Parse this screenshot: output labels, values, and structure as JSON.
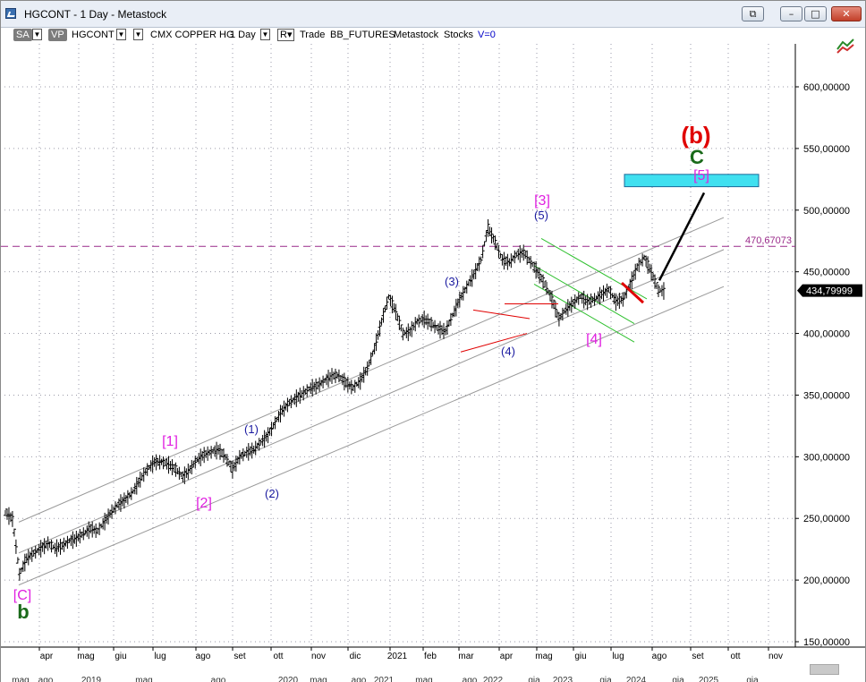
{
  "window": {
    "title": "HGCONT - 1 Day - Metastock",
    "controls": {
      "restore_doc": "⧉",
      "minimize": "–",
      "maximize": "□",
      "close": "✕"
    },
    "close_color": "#c2402a"
  },
  "toolbar": {
    "sa_label": "SA",
    "vp_label": "VP",
    "symbol": "HGCONT",
    "instrument": "CMX COPPER HG",
    "period": "1 Day",
    "mode_label": "R",
    "trade_label": "Trade",
    "exchange": "BB_FUTURES",
    "source": "Metastock",
    "category": "Stocks",
    "volume_flag": "V=0",
    "dropdown_icon": "chevron-down-icon"
  },
  "chart_data": {
    "type": "line",
    "style": "ohlc-bars",
    "symbol": "HGCONT",
    "x_axis_months": [
      "apr",
      "mag",
      "giu",
      "lug",
      "ago",
      "set",
      "ott",
      "nov",
      "dic",
      "2021",
      "feb",
      "mar",
      "apr",
      "mag",
      "giu",
      "lug",
      "ago",
      "set",
      "ott",
      "nov"
    ],
    "x_axis_lower_fragments": [
      "mag",
      "ago",
      "2019",
      "mag",
      "ago",
      "2020",
      "mag",
      "ago",
      "2021",
      "mag",
      "ago",
      "2022",
      "gia",
      "2023",
      "gia",
      "2024",
      "gia",
      "2025",
      "gia"
    ],
    "y_ticks": [
      "600,00000",
      "550,00000",
      "500,00000",
      "450,00000",
      "400,00000",
      "350,00000",
      "300,00000",
      "250,00000",
      "200,00000",
      "150,00000"
    ],
    "ylim": [
      150,
      650
    ],
    "last_price_label": "434,79999",
    "last_price": 434.8,
    "reference_line": {
      "label": "470,67073",
      "value": 470.67,
      "color": "#9a2a8a",
      "style": "dashed"
    },
    "grid": true,
    "series": [
      {
        "name": "HGCONT",
        "x": [
          0,
          4,
          8,
          12,
          16,
          20,
          24,
          28,
          32,
          36,
          40,
          44,
          48,
          52,
          56,
          60,
          64,
          68,
          72,
          76,
          80,
          84,
          88,
          92,
          96,
          100,
          104,
          108,
          112,
          116,
          120,
          124,
          128,
          132,
          136,
          140,
          144,
          148,
          152,
          156,
          160,
          164,
          168,
          172,
          176,
          180,
          184,
          188,
          192,
          196,
          200,
          204,
          208,
          212,
          216,
          220,
          224,
          228,
          232,
          236,
          240,
          244,
          248,
          252,
          256,
          260,
          264,
          268,
          272,
          276,
          280,
          284,
          288,
          292,
          296,
          300,
          304,
          308,
          312,
          316,
          320,
          324,
          328,
          332,
          336,
          340,
          344,
          348,
          352,
          356,
          360,
          364,
          368
        ],
        "values": [
          255,
          250,
          205,
          218,
          222,
          226,
          230,
          226,
          228,
          232,
          234,
          238,
          242,
          240,
          248,
          256,
          262,
          266,
          272,
          282,
          290,
          296,
          296,
          294,
          290,
          284,
          290,
          298,
          302,
          304,
          306,
          300,
          290,
          300,
          304,
          306,
          312,
          318,
          328,
          338,
          344,
          348,
          352,
          356,
          358,
          362,
          366,
          366,
          360,
          356,
          362,
          372,
          388,
          410,
          430,
          418,
          400,
          402,
          410,
          412,
          408,
          404,
          402,
          415,
          428,
          438,
          448,
          460,
          486,
          474,
          460,
          458,
          464,
          466,
          458,
          450,
          440,
          428,
          412,
          420,
          425,
          430,
          426,
          428,
          432,
          436,
          426,
          428,
          440,
          454,
          462,
          450,
          435
        ]
      }
    ]
  },
  "annotations": {
    "wave_b_red": "(b)",
    "wave_c_green": "C",
    "wave_5_magenta": "[5]",
    "wave_3_magenta": "[3]",
    "wave_5_blue": "(5)",
    "wave_3_blue": "(3)",
    "wave_4_blue": "(4)",
    "wave_4_magenta": "[4]",
    "wave_1_magenta": "[1]",
    "wave_1_blue": "(1)",
    "wave_2_magenta": "[2]",
    "wave_2_blue": "(2)",
    "wave_c_magenta": "[C]",
    "wave_b_green": "b"
  },
  "colors": {
    "background": "#ffffff",
    "bars": "#000000",
    "magenta": "#e020e0",
    "blue": "#1a1aa0",
    "red": "#e00000",
    "green": "#1a6a1a",
    "cyan_box": "#40e0f0",
    "channel_green": "#30c030",
    "channel_gray": "#9a9a9a",
    "last_price_badge": "#000000"
  }
}
